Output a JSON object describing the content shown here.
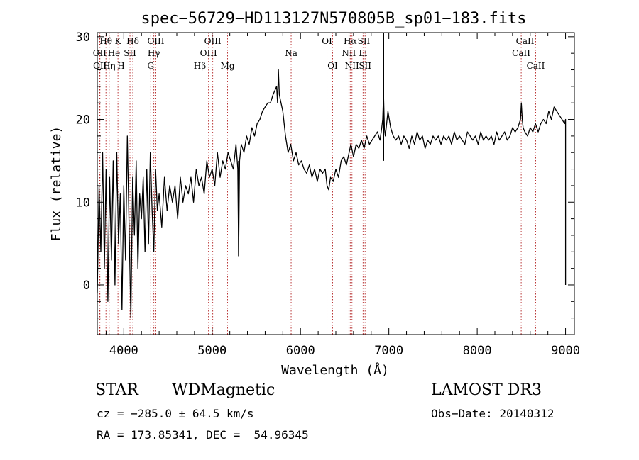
{
  "chart_data": {
    "type": "line",
    "title": "spec−56729−HD113127N570805B_sp01−183.fits",
    "xlabel": "Wavelength (Å)",
    "ylabel": "Flux (relative)",
    "xlim": [
      3700,
      9100
    ],
    "ylim": [
      -6,
      30.5
    ],
    "xticks": [
      4000,
      5000,
      6000,
      7000,
      8000,
      9000
    ],
    "yticks": [
      0,
      10,
      20,
      30
    ],
    "series": [
      {
        "name": "flux",
        "x": [
          3700,
          3720,
          3740,
          3760,
          3780,
          3800,
          3820,
          3840,
          3860,
          3880,
          3900,
          3920,
          3940,
          3960,
          3980,
          4000,
          4020,
          4040,
          4060,
          4080,
          4100,
          4120,
          4140,
          4160,
          4180,
          4200,
          4220,
          4240,
          4260,
          4280,
          4300,
          4320,
          4340,
          4360,
          4380,
          4400,
          4430,
          4460,
          4490,
          4520,
          4550,
          4580,
          4610,
          4640,
          4670,
          4700,
          4730,
          4760,
          4790,
          4820,
          4850,
          4880,
          4910,
          4940,
          4970,
          5000,
          5030,
          5060,
          5090,
          5120,
          5150,
          5180,
          5210,
          5240,
          5270,
          5290,
          5300,
          5310,
          5330,
          5360,
          5390,
          5420,
          5450,
          5480,
          5510,
          5540,
          5570,
          5600,
          5630,
          5660,
          5690,
          5710,
          5730,
          5740,
          5750,
          5760,
          5780,
          5800,
          5830,
          5860,
          5890,
          5920,
          5950,
          5980,
          6010,
          6040,
          6070,
          6100,
          6130,
          6160,
          6190,
          6220,
          6250,
          6280,
          6300,
          6320,
          6340,
          6370,
          6400,
          6430,
          6460,
          6490,
          6520,
          6550,
          6570,
          6600,
          6630,
          6660,
          6690,
          6720,
          6750,
          6780,
          6810,
          6840,
          6870,
          6900,
          6920,
          6930,
          6940,
          6950,
          6960,
          6990,
          7020,
          7050,
          7080,
          7110,
          7140,
          7170,
          7200,
          7230,
          7260,
          7290,
          7320,
          7350,
          7380,
          7410,
          7440,
          7470,
          7500,
          7530,
          7560,
          7590,
          7620,
          7650,
          7680,
          7710,
          7740,
          7770,
          7800,
          7830,
          7860,
          7890,
          7920,
          7950,
          7980,
          8010,
          8040,
          8070,
          8100,
          8130,
          8160,
          8190,
          8220,
          8250,
          8280,
          8310,
          8340,
          8370,
          8400,
          8430,
          8460,
          8490,
          8500,
          8510,
          8520,
          8540,
          8570,
          8600,
          8630,
          8660,
          8690,
          8720,
          8750,
          8780,
          8810,
          8840,
          8870,
          8900,
          8930,
          8960,
          8990,
          9000,
          9000
        ],
        "y": [
          -1,
          12,
          4,
          16,
          2,
          14,
          -2,
          13,
          3,
          15,
          0,
          16,
          5,
          11,
          -3,
          12,
          3,
          18,
          7,
          -4,
          13,
          6,
          15,
          2,
          11,
          8,
          13,
          4,
          14,
          5,
          16,
          9,
          4,
          14,
          9,
          11,
          7,
          13,
          9,
          12,
          10,
          12,
          8,
          13,
          10,
          12,
          11,
          13,
          10,
          14,
          12,
          13,
          11,
          15,
          13,
          14,
          12,
          16,
          13,
          15,
          14,
          16,
          15,
          14,
          17,
          14,
          3.5,
          15,
          17,
          16,
          18,
          17,
          19,
          18,
          19.5,
          20,
          21,
          21.5,
          22,
          22,
          23,
          23.5,
          24,
          22,
          26,
          23,
          22,
          21,
          18,
          16,
          17,
          15,
          16,
          14.5,
          15,
          14,
          13.5,
          14.5,
          13,
          14,
          12.5,
          14,
          13.5,
          14,
          12,
          11.5,
          13,
          12.5,
          14,
          13,
          15,
          15.5,
          14.5,
          16,
          17,
          15.5,
          17,
          16.5,
          17.5,
          16.5,
          18,
          17,
          17.5,
          18,
          18.5,
          17.5,
          19,
          20,
          23,
          19,
          18,
          21,
          19,
          18,
          17.5,
          18,
          17,
          18,
          17.5,
          16.5,
          18,
          17,
          18.5,
          17.5,
          18,
          16.5,
          17.5,
          17,
          18,
          17.5,
          18,
          17,
          18,
          17.5,
          18,
          17,
          18.5,
          17.5,
          18,
          17.5,
          17,
          18.5,
          18,
          17.5,
          18,
          17,
          18.5,
          17.5,
          18,
          17.5,
          18,
          17,
          18.5,
          17.5,
          18,
          18.5,
          17.5,
          18,
          19,
          18.5,
          19,
          20,
          22,
          20,
          19,
          18.5,
          18,
          19,
          18.5,
          19.5,
          18.5,
          19.5,
          20,
          19.5,
          21,
          20,
          21.5,
          21,
          20.5,
          20,
          19.5,
          20,
          0
        ]
      }
    ],
    "spikes": [
      {
        "x": 6940,
        "y": 30.5
      },
      {
        "x": 5300,
        "y": 3.5
      }
    ],
    "lines": [
      {
        "label": "Hθ",
        "x": 3798,
        "row": 1
      },
      {
        "label": "OII",
        "x": 3727,
        "row": 2
      },
      {
        "label": "OII",
        "x": 3730,
        "row": 3
      },
      {
        "label": "Hη",
        "x": 3835,
        "row": 3
      },
      {
        "label": "K",
        "x": 3934,
        "row": 1
      },
      {
        "label": "He",
        "x": 3889,
        "row": 2
      },
      {
        "label": "H",
        "x": 3969,
        "row": 3
      },
      {
        "label": "SII",
        "x": 4070,
        "row": 2
      },
      {
        "label": "Hδ",
        "x": 4102,
        "row": 1
      },
      {
        "label": "OIII",
        "x": 4363,
        "row": 1
      },
      {
        "label": "Hγ",
        "x": 4340,
        "row": 2
      },
      {
        "label": "G",
        "x": 4305,
        "row": 3
      },
      {
        "label": "Hβ",
        "x": 4861,
        "row": 3
      },
      {
        "label": "OIII",
        "x": 4959,
        "row": 2
      },
      {
        "label": "OIII",
        "x": 5007,
        "row": 1
      },
      {
        "label": "Mg",
        "x": 5175,
        "row": 3
      },
      {
        "label": "Na",
        "x": 5894,
        "row": 2
      },
      {
        "label": "OI",
        "x": 6300,
        "row": 1
      },
      {
        "label": "OI",
        "x": 6364,
        "row": 3
      },
      {
        "label": "Hα",
        "x": 6563,
        "row": 1
      },
      {
        "label": "NII",
        "x": 6548,
        "row": 2
      },
      {
        "label": "NII",
        "x": 6583,
        "row": 3
      },
      {
        "label": "SII",
        "x": 6717,
        "row": 1
      },
      {
        "label": "Li",
        "x": 6708,
        "row": 2
      },
      {
        "label": "SII",
        "x": 6731,
        "row": 3
      },
      {
        "label": "CaII",
        "x": 8542,
        "row": 1
      },
      {
        "label": "CaII",
        "x": 8498,
        "row": 2
      },
      {
        "label": "CaII",
        "x": 8662,
        "row": 3
      }
    ]
  },
  "info": {
    "object_class": "STAR",
    "subclass": "WDMagnetic",
    "survey": "LAMOST DR3",
    "cz": "cz = −285.0 ± 64.5 km/s",
    "obs_date": "Obs−Date: 20140312",
    "coords": "RA = 173.85341, DEC =  54.96345"
  },
  "colors": {
    "line_marker": "#b22222",
    "spectrum": "#000000",
    "axis": "#000000"
  }
}
